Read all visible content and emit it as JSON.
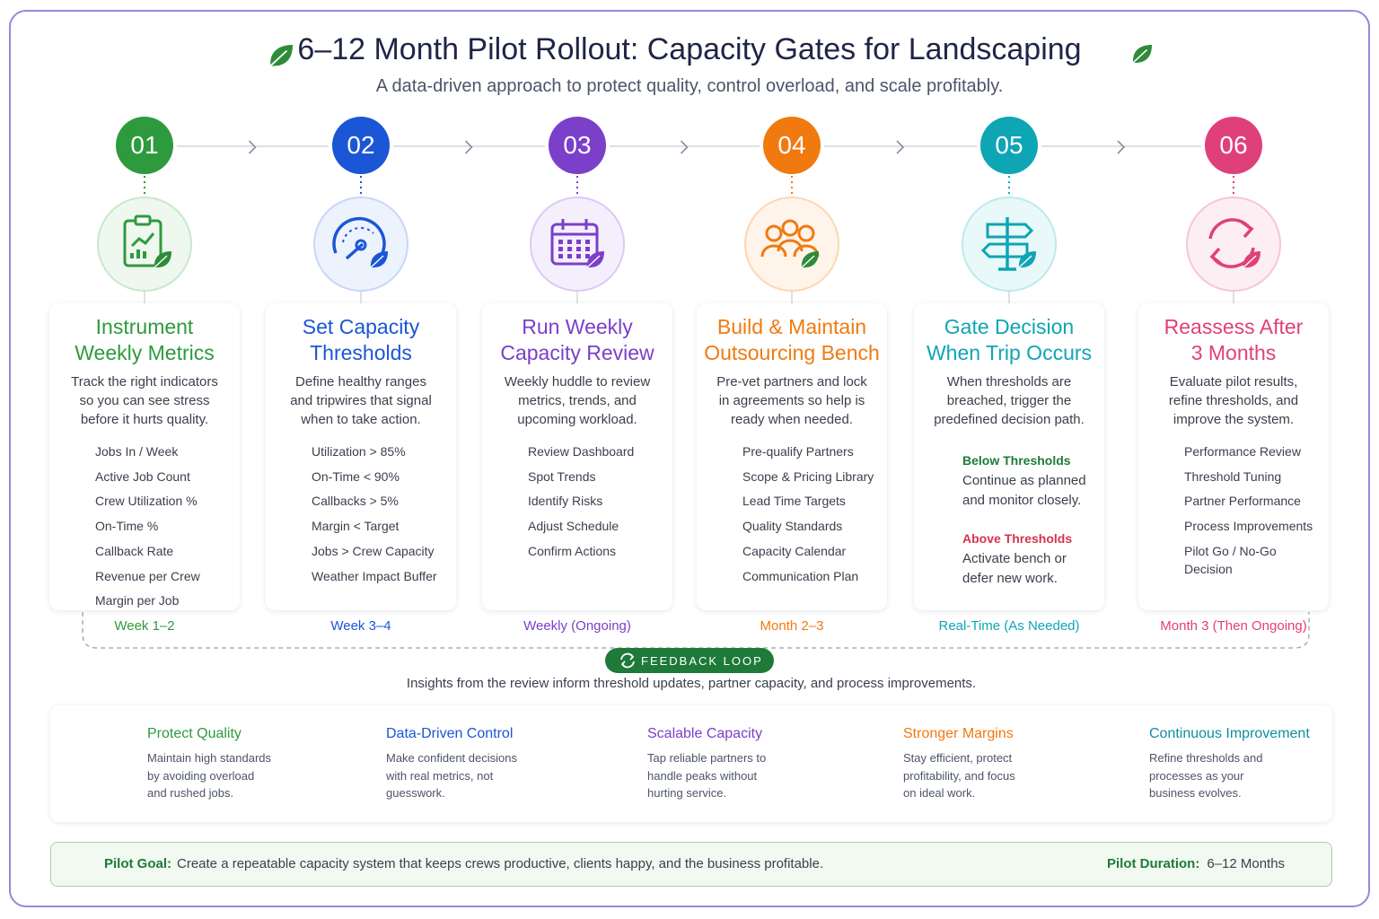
{
  "header": {
    "title": "6–12 Month Pilot Rollout: Capacity Gates for Landscaping",
    "subtitle": "A data-driven approach to protect quality, control overload, and scale profitably."
  },
  "steps": [
    {
      "number": "01",
      "title_lines": [
        "Instrument",
        "Weekly Metrics"
      ],
      "description_lines": [
        "Track the right indicators",
        "so you can see stress",
        "before it hurts quality."
      ],
      "items": [
        "Jobs In / Week",
        "Active Job Count",
        "Crew Utilization %",
        "On-Time %",
        "Callback Rate",
        "Revenue per Crew",
        "Margin per Job"
      ],
      "timing": "Week 1–2"
    },
    {
      "number": "02",
      "title_lines": [
        "Set Capacity",
        "Thresholds"
      ],
      "description_lines": [
        "Define healthy ranges",
        "and tripwires that signal",
        "when to take action."
      ],
      "items": [
        "Utilization > 85%",
        "On-Time < 90%",
        "Callbacks > 5%",
        "Margin < Target",
        "Jobs > Crew Capacity",
        "Weather Impact Buffer"
      ],
      "timing": "Week 3–4"
    },
    {
      "number": "03",
      "title_lines": [
        "Run Weekly",
        "Capacity Review"
      ],
      "description_lines": [
        "Weekly huddle to review",
        "metrics, trends, and",
        "upcoming workload."
      ],
      "items": [
        "Review Dashboard",
        "Spot Trends",
        "Identify Risks",
        "Adjust Schedule",
        "Confirm Actions"
      ],
      "timing": "Weekly (Ongoing)"
    },
    {
      "number": "04",
      "title_lines": [
        "Build & Maintain",
        "Outsourcing Bench"
      ],
      "description_lines": [
        "Pre-vet partners and lock",
        "in agreements so help is",
        "ready when needed."
      ],
      "items": [
        "Pre-qualify Partners",
        "Scope & Pricing Library",
        "Lead Time Targets",
        "Quality Standards",
        "Capacity Calendar",
        "Communication Plan"
      ],
      "timing": "Month 2–3"
    },
    {
      "number": "05",
      "title_lines": [
        "Gate Decision",
        "When Trip Occurs"
      ],
      "description_lines": [
        "When thresholds are",
        "breached, trigger the",
        "predefined decision path."
      ],
      "outcomes": [
        {
          "label": "Below Thresholds",
          "text_lines": [
            "Continue as planned",
            "and monitor closely."
          ]
        },
        {
          "label": "Above Thresholds",
          "text_lines": [
            "Activate bench or",
            "defer new work."
          ]
        }
      ],
      "timing": "Real-Time (As Needed)"
    },
    {
      "number": "06",
      "title_lines": [
        "Reassess After",
        "3 Months"
      ],
      "description_lines": [
        "Evaluate pilot results,",
        "refine thresholds, and",
        "improve the system."
      ],
      "items": [
        "Performance Review",
        "Threshold Tuning",
        "Partner Performance",
        "Process Improvements",
        "Pilot Go / No-Go Decision"
      ],
      "timing": "Month 3 (Then Ongoing)"
    }
  ],
  "feedback": {
    "label": "FEEDBACK LOOP",
    "text": "Insights from the review inform threshold updates, partner capacity, and process improvements."
  },
  "benefits": [
    {
      "title": "Protect Quality",
      "text_lines": [
        "Maintain high standards",
        "by avoiding overload",
        "and rushed jobs."
      ]
    },
    {
      "title": "Data-Driven Control",
      "text_lines": [
        "Make confident decisions",
        "with real metrics, not",
        "guesswork."
      ]
    },
    {
      "title": "Scalable Capacity",
      "text_lines": [
        "Tap reliable partners to",
        "handle peaks without",
        "hurting service."
      ]
    },
    {
      "title": "Stronger Margins",
      "text_lines": [
        "Stay efficient, protect",
        "profitability, and focus",
        "on ideal work."
      ]
    },
    {
      "title": "Continuous Improvement",
      "text_lines": [
        "Refine thresholds and",
        "processes as your",
        "business evolves."
      ]
    }
  ],
  "footer": {
    "goal_label": "Pilot Goal:",
    "goal": "Create a repeatable capacity system that keeps crews productive, clients happy, and the business profitable.",
    "duration_label": "Pilot Duration:",
    "duration": "6–12 Months"
  }
}
